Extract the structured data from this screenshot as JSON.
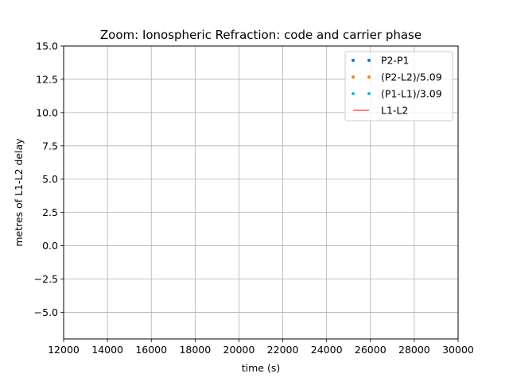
{
  "chart_data": {
    "type": "line",
    "title": "Zoom: Ionospheric Refraction: code and carrier phase",
    "xlabel": "time (s)",
    "ylabel": "metres of L1-L2 delay",
    "xlim": [
      12000,
      30000
    ],
    "ylim": [
      -7.0,
      15.0
    ],
    "xticks": [
      12000,
      14000,
      16000,
      18000,
      20000,
      22000,
      24000,
      26000,
      28000,
      30000
    ],
    "yticks": [
      -5.0,
      -2.5,
      0.0,
      2.5,
      5.0,
      7.5,
      10.0,
      12.5,
      15.0
    ],
    "xtick_labels": [
      "12000",
      "14000",
      "16000",
      "18000",
      "20000",
      "22000",
      "24000",
      "26000",
      "28000",
      "30000"
    ],
    "ytick_labels": [
      "−5.0",
      "−2.5",
      "0.0",
      "2.5",
      "5.0",
      "7.5",
      "10.0",
      "12.5",
      "15.0"
    ],
    "grid": true,
    "legend_position": "upper right",
    "series": [
      {
        "name": "P2-P1",
        "style": "dots",
        "color": "#1f77b4",
        "x": [],
        "y": []
      },
      {
        "name": "(P2-L2)/5.09",
        "style": "dots",
        "color": "#ff7f0e",
        "x": [],
        "y": []
      },
      {
        "name": "(P1-L1)/3.09",
        "style": "dots",
        "color": "#17becf",
        "x": [],
        "y": []
      },
      {
        "name": "L1-L2",
        "style": "line",
        "color": "#ff0000",
        "x": [],
        "y": []
      }
    ]
  }
}
